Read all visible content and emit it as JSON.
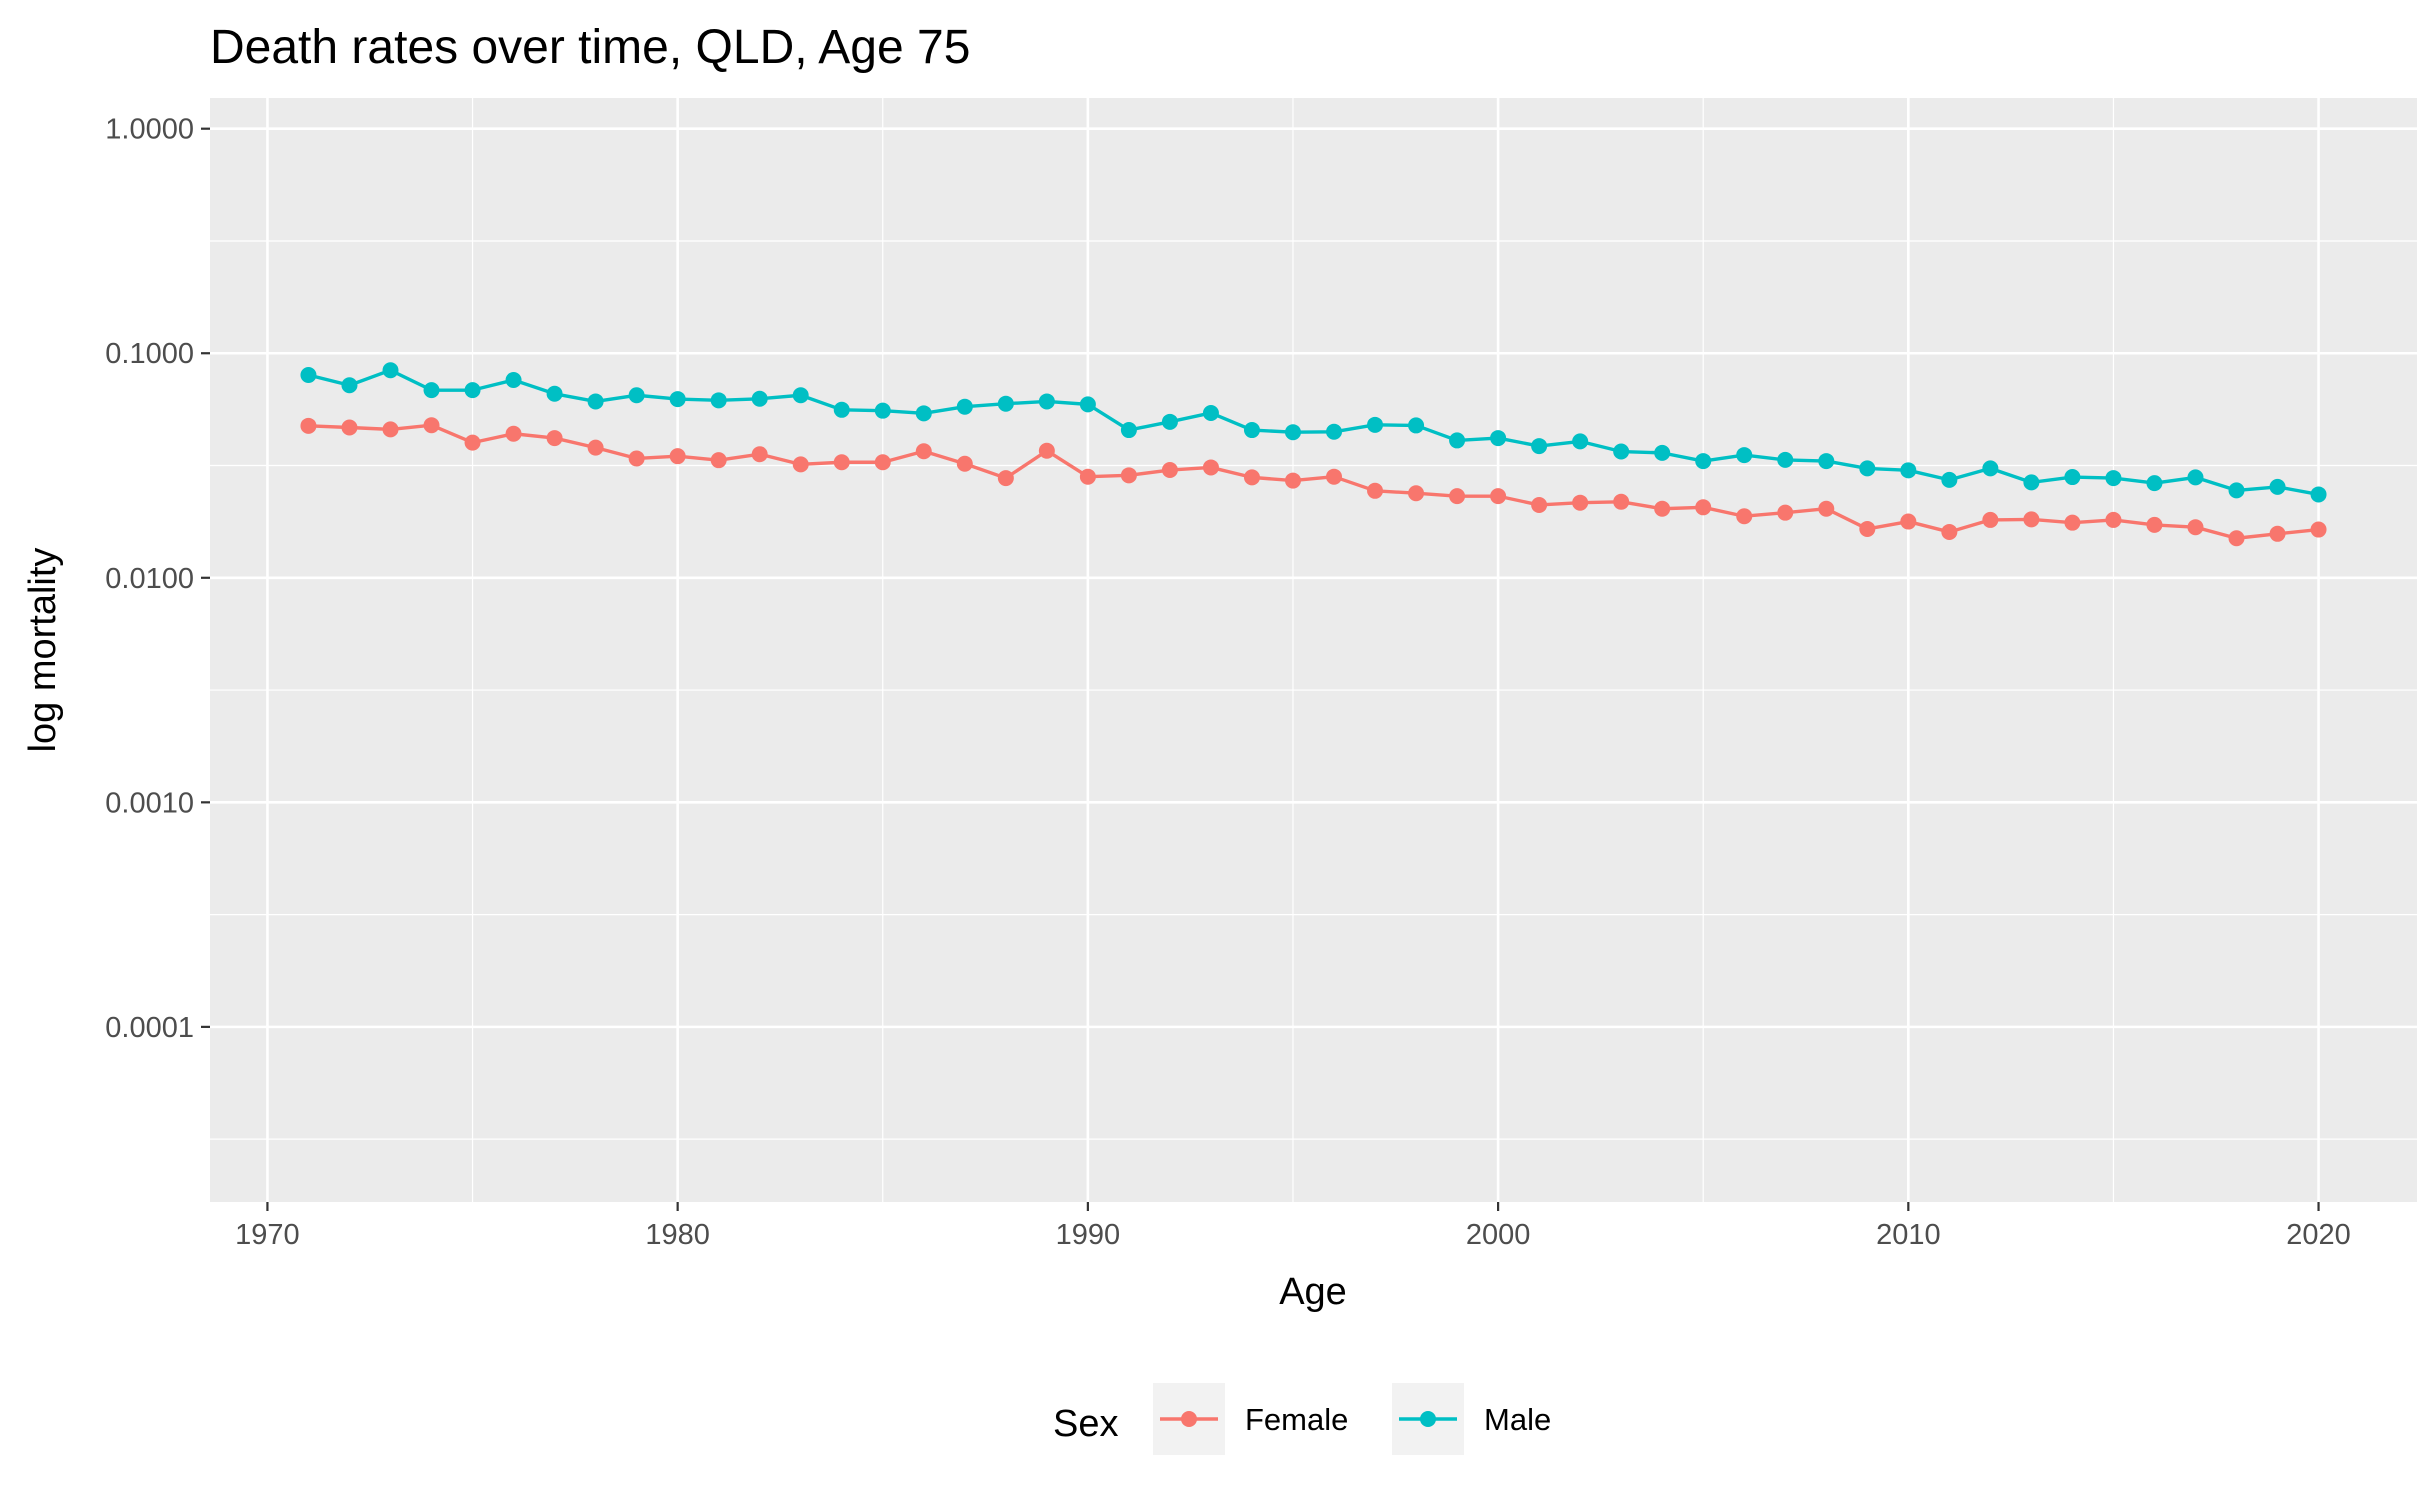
{
  "chart_data": {
    "type": "line",
    "title": "Death rates over time, QLD, Age 75",
    "xlabel": "Age",
    "ylabel": "log mortality",
    "y_scale": "log10",
    "xlim": [
      1968.6,
      2022.4
    ],
    "ylim": [
      1.66e-05,
      1.37
    ],
    "x_ticks": [
      1970,
      1980,
      1990,
      2000,
      2010,
      2020
    ],
    "x_tick_labels": [
      "1970",
      "1980",
      "1990",
      "2000",
      "2010",
      "2020"
    ],
    "y_ticks": [
      1,
      0.1,
      0.01,
      0.001,
      0.0001
    ],
    "y_tick_labels": [
      "1.0000",
      "0.1000",
      "0.0100",
      "0.0010",
      "0.0001"
    ],
    "grid": true,
    "legend": {
      "title": "Sex",
      "position": "bottom"
    },
    "x": [
      1971,
      1972,
      1973,
      1974,
      1975,
      1976,
      1977,
      1978,
      1979,
      1980,
      1981,
      1982,
      1983,
      1984,
      1985,
      1986,
      1987,
      1988,
      1989,
      1990,
      1991,
      1992,
      1993,
      1994,
      1995,
      1996,
      1997,
      1998,
      1999,
      2000,
      2001,
      2002,
      2003,
      2004,
      2005,
      2006,
      2007,
      2008,
      2009,
      2010,
      2011,
      2012,
      2013,
      2014,
      2015,
      2016,
      2017,
      2018,
      2019,
      2020
    ],
    "series": [
      {
        "name": "Female",
        "color": "#F8766D",
        "values": [
          0.0475,
          0.0467,
          0.0458,
          0.0478,
          0.04,
          0.0438,
          0.0419,
          0.038,
          0.034,
          0.0348,
          0.0334,
          0.0355,
          0.032,
          0.0327,
          0.0327,
          0.0366,
          0.0322,
          0.0278,
          0.0368,
          0.0282,
          0.0286,
          0.0302,
          0.031,
          0.028,
          0.0271,
          0.0282,
          0.0244,
          0.0238,
          0.0231,
          0.0231,
          0.0211,
          0.0216,
          0.0218,
          0.0203,
          0.0206,
          0.0188,
          0.0195,
          0.0203,
          0.0165,
          0.0178,
          0.016,
          0.0181,
          0.0182,
          0.0176,
          0.0181,
          0.0172,
          0.0168,
          0.015,
          0.0157,
          0.0164
        ]
      },
      {
        "name": "Male",
        "color": "#00BFC4",
        "values": [
          0.08,
          0.072,
          0.084,
          0.0685,
          0.0685,
          0.076,
          0.066,
          0.061,
          0.065,
          0.0625,
          0.0617,
          0.0627,
          0.065,
          0.056,
          0.0555,
          0.054,
          0.0578,
          0.0596,
          0.061,
          0.0592,
          0.0455,
          0.0495,
          0.0542,
          0.0455,
          0.0445,
          0.0447,
          0.048,
          0.0477,
          0.0409,
          0.0419,
          0.0386,
          0.0405,
          0.0365,
          0.036,
          0.0331,
          0.0352,
          0.0335,
          0.0331,
          0.0307,
          0.0301,
          0.0273,
          0.0307,
          0.0266,
          0.0281,
          0.0278,
          0.0264,
          0.028,
          0.0245,
          0.0254,
          0.0235
        ]
      }
    ]
  },
  "ui": {
    "panel_bg": "#EBEBEB",
    "grid_color": "#FFFFFF"
  }
}
